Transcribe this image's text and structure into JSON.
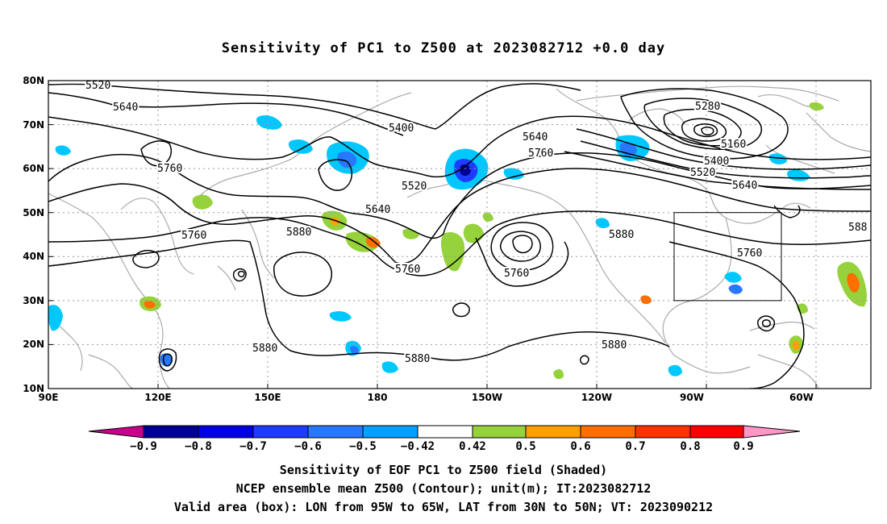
{
  "title": "Sensitivity of PC1 to Z500 at 2023082712 +0.0 day",
  "map": {
    "lat_labels": [
      "80N",
      "70N",
      "60N",
      "50N",
      "40N",
      "30N",
      "20N",
      "10N"
    ],
    "lon_labels": [
      "90E",
      "120E",
      "150E",
      "180",
      "150W",
      "120W",
      "90W",
      "60W"
    ],
    "contour_labels": {
      "c5520a": "5520",
      "c5640a": "5640",
      "c5760a": "5760",
      "c5400a": "5400",
      "c5520b": "5520",
      "c5640b": "5640",
      "c5760b": "5760",
      "c5640c": "5640",
      "c5760c": "5760",
      "c5880a": "5880",
      "c5760d": "5760",
      "c5760e": "5760",
      "c5880b": "5880",
      "c5880c": "5880",
      "c5880d": "5880",
      "c5880e": "5880",
      "c5280": "5280",
      "c5160": "5160",
      "c5400b": "5400",
      "c5520c": "5520",
      "c5640d": "5640",
      "c5760f": "5760",
      "c588edge": "588"
    },
    "box": {
      "lon_from": "95W",
      "lon_to": "65W",
      "lat_from": "30N",
      "lat_to": "50N"
    },
    "colors": {
      "neg_09": "#000096",
      "neg_08": "#0000e6",
      "neg_07": "#1e3cff",
      "neg_06": "#2878ff",
      "neg_05": "#00a0ff",
      "neg_042": "#00c8ff",
      "pos_042": "#96d23c",
      "pos_05": "#ffa000",
      "pos_06": "#ff6e00",
      "pos_07": "#ff3200",
      "pos_08": "#ff0000",
      "pos_09": "#ff96c8",
      "low_end": "#c8008c",
      "coast": "#aaaaaa"
    }
  },
  "colorbar": {
    "labels": [
      "−0.9",
      "−0.8",
      "−0.7",
      "−0.6",
      "−0.5",
      "−0.42",
      "0.42",
      "0.5",
      "0.6",
      "0.7",
      "0.8",
      "0.9"
    ]
  },
  "captions": {
    "line1": "Sensitivity of EOF PC1 to Z500 field (Shaded)",
    "line2": "NCEP ensemble mean Z500 (Contour); unit(m); IT:2023082712",
    "line3": "Valid area (box): LON from 95W to 65W, LAT from 30N to 50N; VT: 2023090212"
  }
}
